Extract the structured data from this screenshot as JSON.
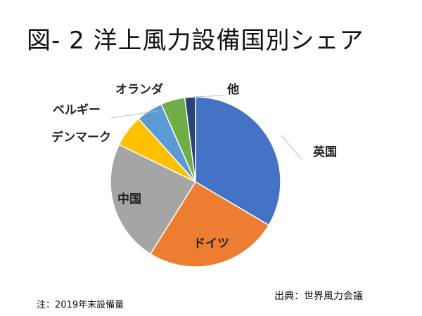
{
  "chart_data": {
    "type": "pie",
    "title": "図- 2 洋上風力設備国別シェア",
    "categories": [
      "英国",
      "ドイツ",
      "中国",
      "デンマーク",
      "ベルギー",
      "オランダ",
      "他"
    ],
    "values": [
      33,
      25,
      23,
      6,
      5,
      4.5,
      2
    ],
    "unit": "%",
    "colors": [
      "#4472C4",
      "#ED7D31",
      "#A5A5A5",
      "#FFC000",
      "#5B9BD5",
      "#70AD47",
      "#264478"
    ],
    "start_angle_deg": 0,
    "direction": "clockwise",
    "legend": "none"
  },
  "note": "注：2019年末設備量",
  "source": "出典：世界風力会議"
}
